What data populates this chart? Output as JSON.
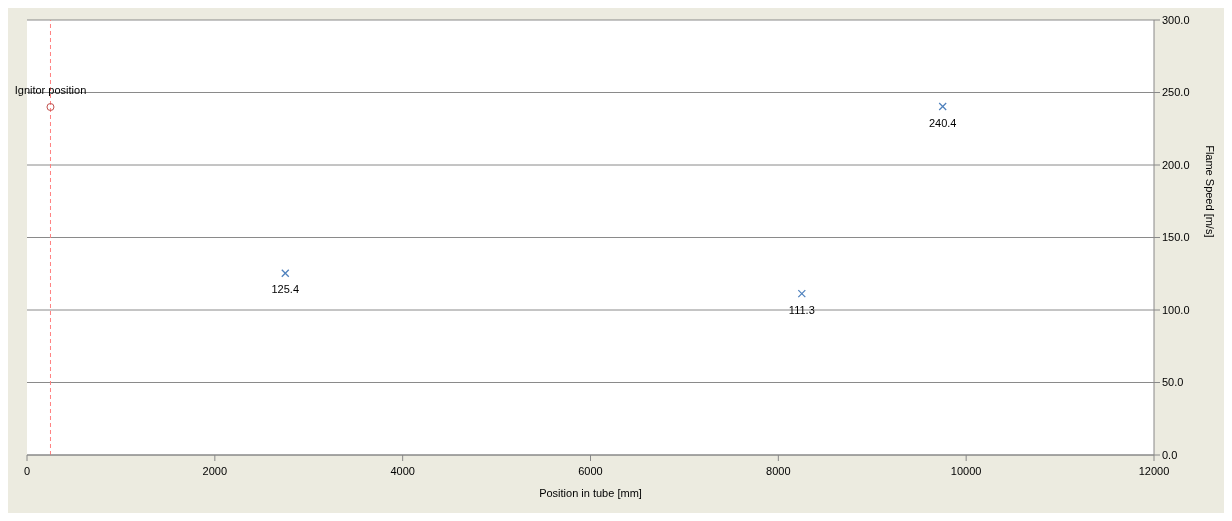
{
  "chart_data": {
    "type": "scatter",
    "xlabel": "Position in tube [mm]",
    "y2label": "Flame Speed [m/s]",
    "xlim": [
      0,
      12000
    ],
    "xticks": [
      0,
      2000,
      4000,
      6000,
      8000,
      10000,
      12000
    ],
    "y2lim": [
      0,
      300
    ],
    "y2ticks": [
      {
        "value": 0,
        "label": "0.0"
      },
      {
        "value": 50,
        "label": "50.0"
      },
      {
        "value": 100,
        "label": "100.0"
      },
      {
        "value": 150,
        "label": "150.0"
      },
      {
        "value": 200,
        "label": "200.0"
      },
      {
        "value": 250,
        "label": "250.0"
      },
      {
        "value": 300,
        "label": "300.0"
      }
    ],
    "grid": "y",
    "legend": false,
    "series": [
      {
        "axis": "y2",
        "marker": "circle",
        "color": "#c0504d",
        "x": [
          250
        ],
        "values": [
          240
        ]
      },
      {
        "axis": "y2",
        "marker": "cross",
        "color": "#4f81bd",
        "x": [
          2750,
          8250,
          9750
        ],
        "values": [
          125.4,
          111.3,
          240.4
        ],
        "value_labels": [
          "125.4",
          "111.3",
          "240.4"
        ]
      }
    ],
    "ref_lines": [
      {
        "axis": "x",
        "value": 250,
        "color": "#ff8080",
        "line_style": "dashed",
        "label": "Ignitor position"
      }
    ]
  }
}
